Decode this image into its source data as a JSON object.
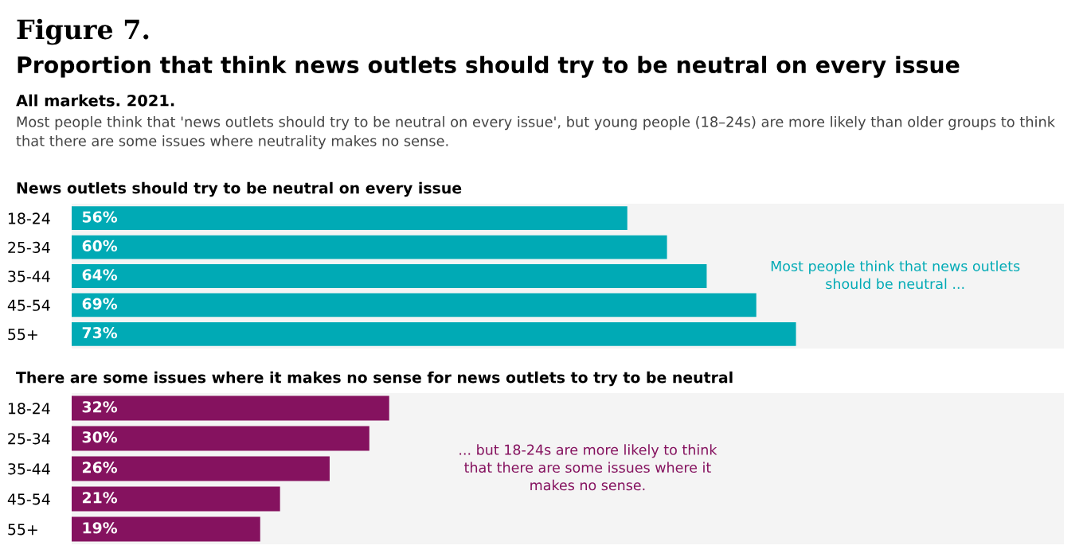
{
  "chart_data": [
    {
      "type": "other",
      "title": "Figure 7.",
      "subtitle": "Proportion that think news outlets should try to be neutral on every issue",
      "annotations": [
        "All markets. 2021.",
        "Most people think that 'news outlets should try to be neutral on every issue', but young people (18–24s) are more likely than older groups to think that there are some issues where neutrality makes no sense."
      ]
    },
    {
      "type": "bar",
      "orientation": "horizontal",
      "title": "News outlets should try to be neutral on every issue",
      "categories": [
        "18-24",
        "25-34",
        "35-44",
        "45-54",
        "55+"
      ],
      "values": [
        56,
        60,
        64,
        69,
        73
      ],
      "color": "#00aab5",
      "value_labels": [
        "56%",
        "60%",
        "64%",
        "69%",
        "73%"
      ],
      "xlim": [
        0,
        100
      ],
      "annotations": [
        "Most people think that news outlets\nshould be neutral ..."
      ]
    },
    {
      "type": "bar",
      "orientation": "horizontal",
      "title": "There are some issues where it makes no sense for news outlets to try to be neutral",
      "categories": [
        "18-24",
        "25-34",
        "35-44",
        "45-54",
        "55+"
      ],
      "values": [
        32,
        30,
        26,
        21,
        19
      ],
      "color": "#85125f",
      "value_labels": [
        "32%",
        "30%",
        "26%",
        "21%",
        "19%"
      ],
      "xlim": [
        0,
        100
      ],
      "annotations": [
        "... but 18-24s are more likely to think\nthat there are some issues where it\nmakes no sense."
      ]
    }
  ]
}
